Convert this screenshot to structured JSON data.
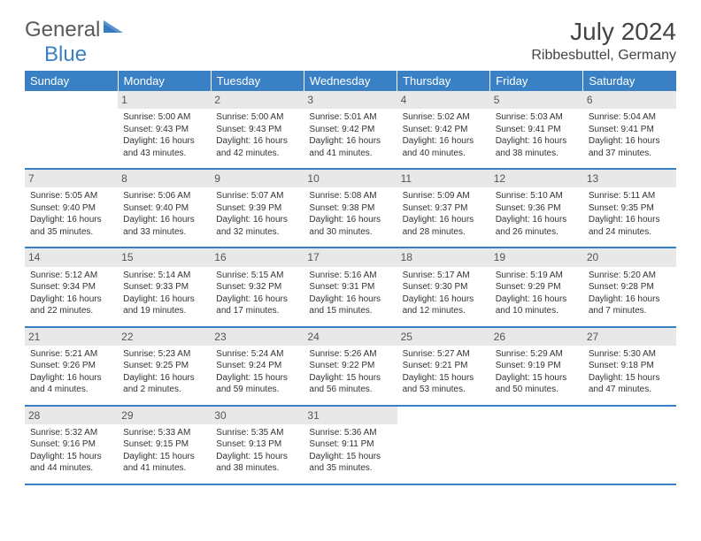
{
  "logo": {
    "part1": "General",
    "part2": "Blue"
  },
  "title": "July 2024",
  "location": "Ribbesbuttel, Germany",
  "colors": {
    "header_bg": "#3a80c4",
    "header_text": "#ffffff",
    "daynum_bg": "#e8e8e8",
    "border": "#3a80c4",
    "logo_gray": "#5a5a5a",
    "logo_blue": "#3a80c4"
  },
  "day_headers": [
    "Sunday",
    "Monday",
    "Tuesday",
    "Wednesday",
    "Thursday",
    "Friday",
    "Saturday"
  ],
  "weeks": [
    [
      null,
      {
        "n": "1",
        "sr": "5:00 AM",
        "ss": "9:43 PM",
        "dl": "16 hours and 43 minutes."
      },
      {
        "n": "2",
        "sr": "5:00 AM",
        "ss": "9:43 PM",
        "dl": "16 hours and 42 minutes."
      },
      {
        "n": "3",
        "sr": "5:01 AM",
        "ss": "9:42 PM",
        "dl": "16 hours and 41 minutes."
      },
      {
        "n": "4",
        "sr": "5:02 AM",
        "ss": "9:42 PM",
        "dl": "16 hours and 40 minutes."
      },
      {
        "n": "5",
        "sr": "5:03 AM",
        "ss": "9:41 PM",
        "dl": "16 hours and 38 minutes."
      },
      {
        "n": "6",
        "sr": "5:04 AM",
        "ss": "9:41 PM",
        "dl": "16 hours and 37 minutes."
      }
    ],
    [
      {
        "n": "7",
        "sr": "5:05 AM",
        "ss": "9:40 PM",
        "dl": "16 hours and 35 minutes."
      },
      {
        "n": "8",
        "sr": "5:06 AM",
        "ss": "9:40 PM",
        "dl": "16 hours and 33 minutes."
      },
      {
        "n": "9",
        "sr": "5:07 AM",
        "ss": "9:39 PM",
        "dl": "16 hours and 32 minutes."
      },
      {
        "n": "10",
        "sr": "5:08 AM",
        "ss": "9:38 PM",
        "dl": "16 hours and 30 minutes."
      },
      {
        "n": "11",
        "sr": "5:09 AM",
        "ss": "9:37 PM",
        "dl": "16 hours and 28 minutes."
      },
      {
        "n": "12",
        "sr": "5:10 AM",
        "ss": "9:36 PM",
        "dl": "16 hours and 26 minutes."
      },
      {
        "n": "13",
        "sr": "5:11 AM",
        "ss": "9:35 PM",
        "dl": "16 hours and 24 minutes."
      }
    ],
    [
      {
        "n": "14",
        "sr": "5:12 AM",
        "ss": "9:34 PM",
        "dl": "16 hours and 22 minutes."
      },
      {
        "n": "15",
        "sr": "5:14 AM",
        "ss": "9:33 PM",
        "dl": "16 hours and 19 minutes."
      },
      {
        "n": "16",
        "sr": "5:15 AM",
        "ss": "9:32 PM",
        "dl": "16 hours and 17 minutes."
      },
      {
        "n": "17",
        "sr": "5:16 AM",
        "ss": "9:31 PM",
        "dl": "16 hours and 15 minutes."
      },
      {
        "n": "18",
        "sr": "5:17 AM",
        "ss": "9:30 PM",
        "dl": "16 hours and 12 minutes."
      },
      {
        "n": "19",
        "sr": "5:19 AM",
        "ss": "9:29 PM",
        "dl": "16 hours and 10 minutes."
      },
      {
        "n": "20",
        "sr": "5:20 AM",
        "ss": "9:28 PM",
        "dl": "16 hours and 7 minutes."
      }
    ],
    [
      {
        "n": "21",
        "sr": "5:21 AM",
        "ss": "9:26 PM",
        "dl": "16 hours and 4 minutes."
      },
      {
        "n": "22",
        "sr": "5:23 AM",
        "ss": "9:25 PM",
        "dl": "16 hours and 2 minutes."
      },
      {
        "n": "23",
        "sr": "5:24 AM",
        "ss": "9:24 PM",
        "dl": "15 hours and 59 minutes."
      },
      {
        "n": "24",
        "sr": "5:26 AM",
        "ss": "9:22 PM",
        "dl": "15 hours and 56 minutes."
      },
      {
        "n": "25",
        "sr": "5:27 AM",
        "ss": "9:21 PM",
        "dl": "15 hours and 53 minutes."
      },
      {
        "n": "26",
        "sr": "5:29 AM",
        "ss": "9:19 PM",
        "dl": "15 hours and 50 minutes."
      },
      {
        "n": "27",
        "sr": "5:30 AM",
        "ss": "9:18 PM",
        "dl": "15 hours and 47 minutes."
      }
    ],
    [
      {
        "n": "28",
        "sr": "5:32 AM",
        "ss": "9:16 PM",
        "dl": "15 hours and 44 minutes."
      },
      {
        "n": "29",
        "sr": "5:33 AM",
        "ss": "9:15 PM",
        "dl": "15 hours and 41 minutes."
      },
      {
        "n": "30",
        "sr": "5:35 AM",
        "ss": "9:13 PM",
        "dl": "15 hours and 38 minutes."
      },
      {
        "n": "31",
        "sr": "5:36 AM",
        "ss": "9:11 PM",
        "dl": "15 hours and 35 minutes."
      },
      null,
      null,
      null
    ]
  ],
  "labels": {
    "sunrise": "Sunrise: ",
    "sunset": "Sunset: ",
    "daylight": "Daylight: "
  }
}
